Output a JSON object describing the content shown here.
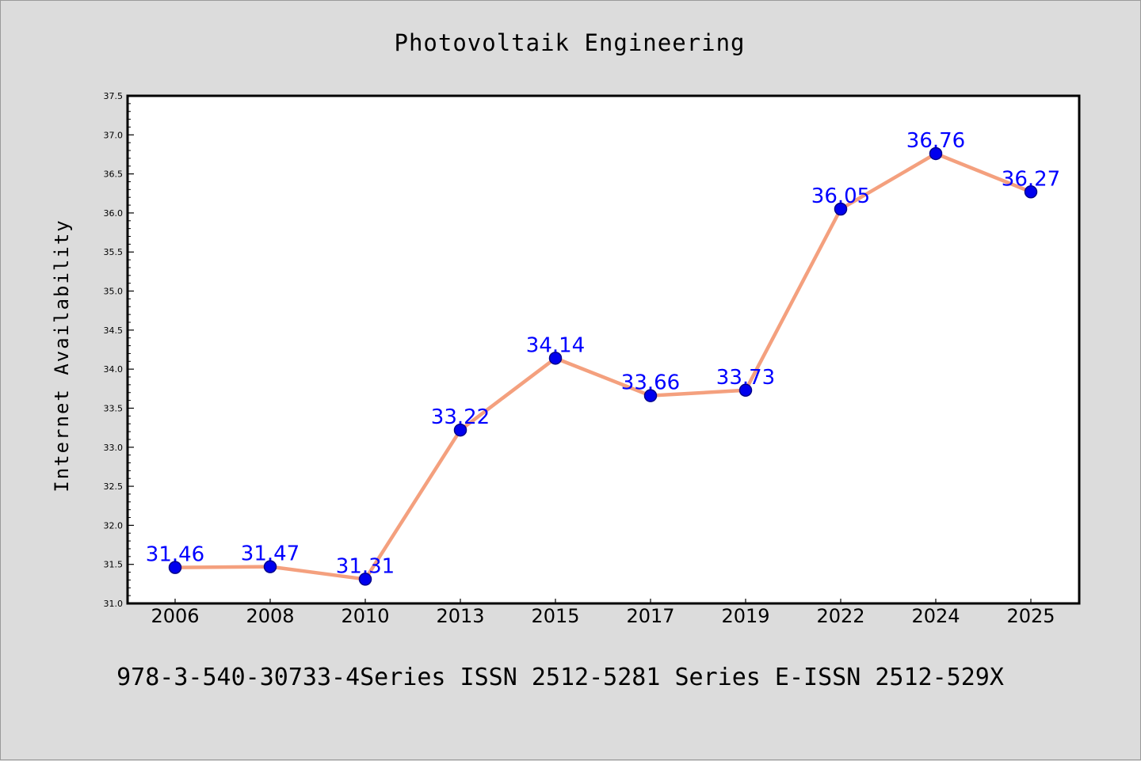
{
  "chart_data": {
    "type": "line",
    "title": "Photovoltaik Engineering",
    "xlabel": "",
    "ylabel": "Internet Availability",
    "categories": [
      "2006",
      "2008",
      "2010",
      "2013",
      "2015",
      "2017",
      "2019",
      "2022",
      "2024",
      "2025"
    ],
    "series": [
      {
        "values": [
          31.46,
          31.47,
          31.31,
          33.22,
          34.14,
          33.66,
          33.73,
          36.05,
          36.76,
          36.27
        ]
      }
    ],
    "data_labels": [
      "31.46",
      "31.47",
      "31.31",
      "33.22",
      "34.14",
      "33.66",
      "33.73",
      "36.05",
      "36.76",
      "36.27"
    ],
    "ylim": [
      31.0,
      37.5
    ],
    "y_ticks": [
      "31.0",
      "31.5",
      "32.0",
      "32.5",
      "33.0",
      "33.5",
      "34.0",
      "34.5",
      "35.0",
      "35.5",
      "36.0",
      "36.5",
      "37.0",
      "37.5"
    ],
    "grid": false,
    "footer": "978-3-540-30733-4Series ISSN 2512-5281 Series E-ISSN 2512-529X",
    "colors": {
      "line": "#f4a07e",
      "marker": "#0000ee",
      "marker_edge": "#00008b",
      "data_label": "#0000ff",
      "plot_bg": "#ffffff",
      "page_bg": "#dcdcdc",
      "axis": "#000000"
    }
  }
}
